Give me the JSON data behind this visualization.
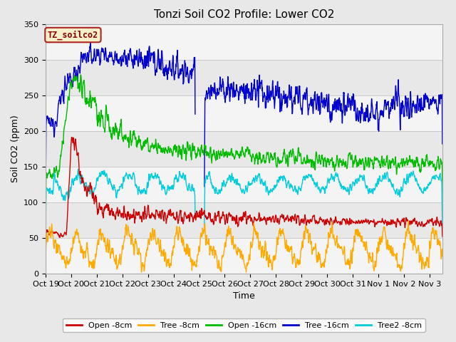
{
  "title": "Tonzi Soil CO2 Profile: Lower CO2",
  "xlabel": "Time",
  "ylabel": "Soil CO2 (ppm)",
  "ylim": [
    0,
    350
  ],
  "xlim_days": [
    0,
    15.5
  ],
  "fig_facecolor": "#e8e8e8",
  "plot_bg_color": "#e8e8e8",
  "box_label": "TZ_soilco2",
  "x_tick_labels": [
    "Oct 19",
    "Oct 20",
    "Oct 21",
    "Oct 22",
    "Oct 23",
    "Oct 24",
    "Oct 25",
    "Oct 26",
    "Oct 27",
    "Oct 28",
    "Oct 29",
    "Oct 30",
    "Oct 31",
    "Nov 1",
    "Nov 2",
    "Nov 3"
  ],
  "series": [
    {
      "label": "Open -8cm",
      "color": "#cc0000",
      "lw": 1.0
    },
    {
      "label": "Tree -8cm",
      "color": "#ffaa00",
      "lw": 1.0
    },
    {
      "label": "Open -16cm",
      "color": "#00bb00",
      "lw": 1.0
    },
    {
      "label": "Tree -16cm",
      "color": "#0000cc",
      "lw": 1.0
    },
    {
      "label": "Tree2 -8cm",
      "color": "#00ccdd",
      "lw": 1.0
    }
  ]
}
